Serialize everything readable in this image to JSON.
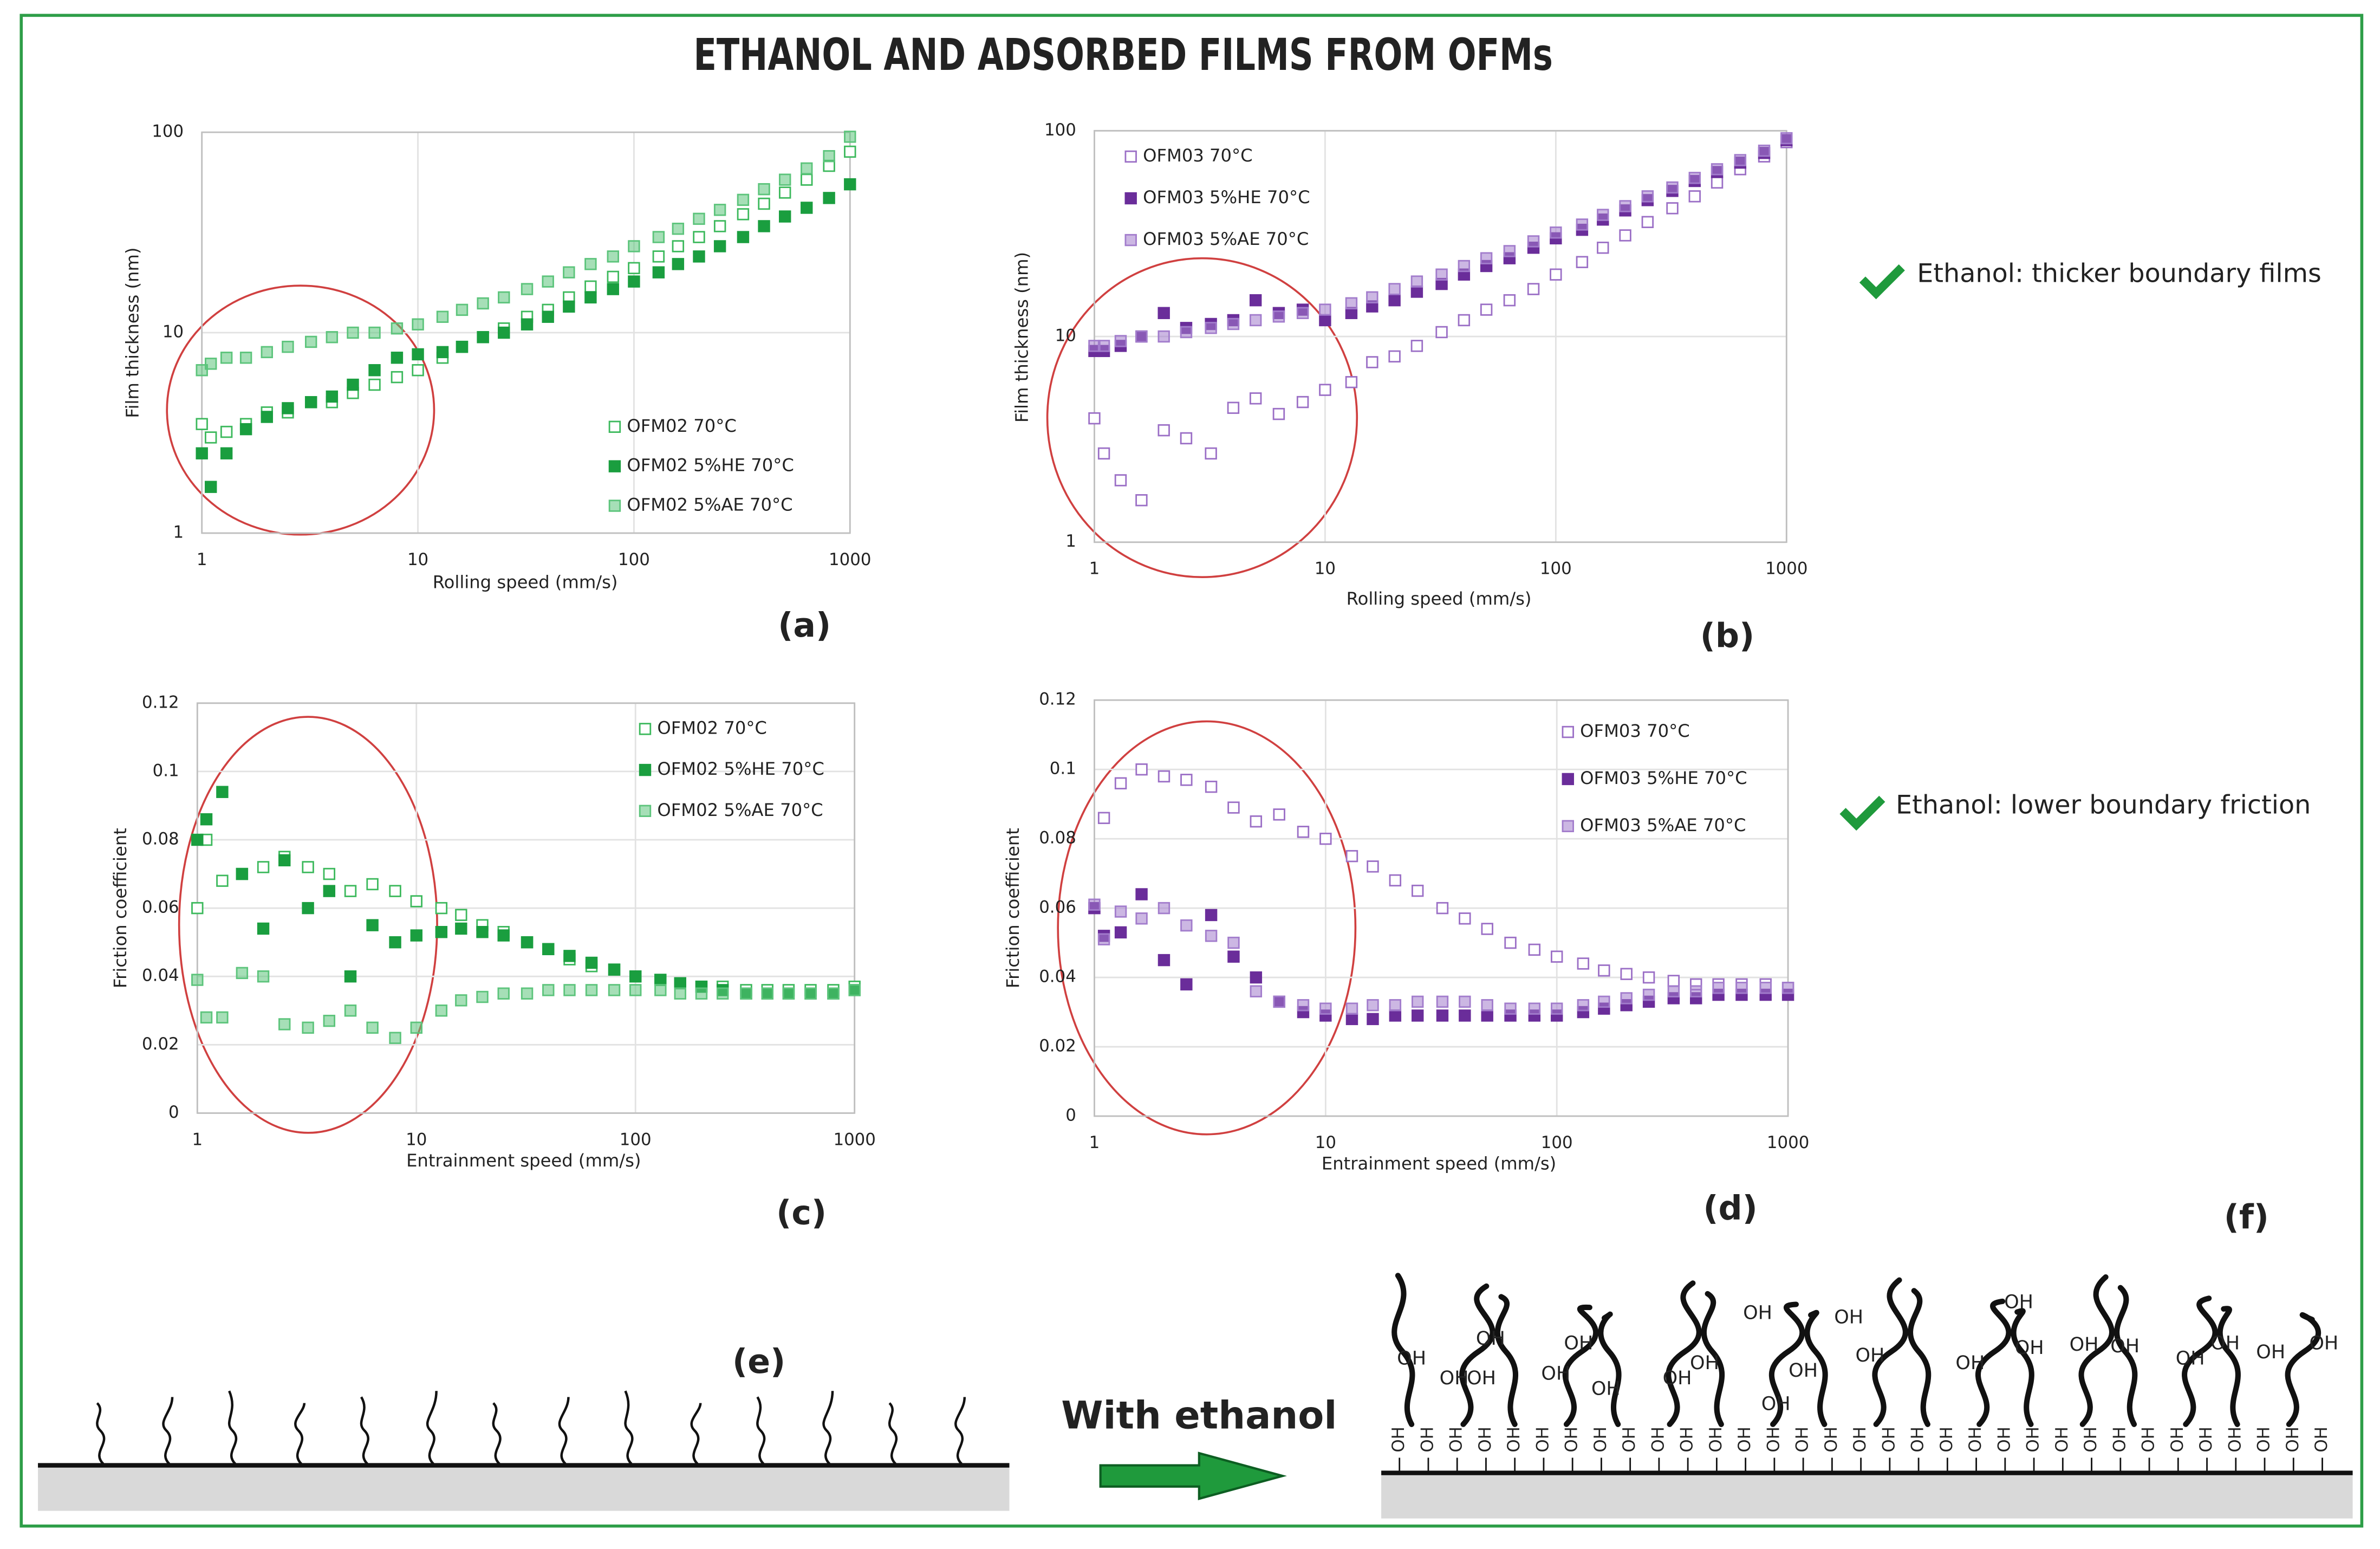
{
  "title": "ETHANOL AND ADSORBED FILMS FROM OFMs",
  "annotations": [
    "Ethanol: thicker boundary films",
    "Ethanol: lower boundary friction"
  ],
  "diagram": {
    "left_label": "(e)",
    "right_label": "(f)",
    "arrow_label": "With ethanol",
    "group_label": "OH"
  },
  "chart_data": [
    {
      "type": "scatter",
      "panel_label": "(a)",
      "xlabel": "Rolling speed (mm/s)",
      "ylabel": "Film thickness (nm)",
      "xlog": true,
      "ylog": true,
      "grid": true,
      "xlim": [
        1,
        1000
      ],
      "xticks": [
        1,
        10,
        100,
        1000
      ],
      "ylim": [
        1,
        100
      ],
      "yticks": [
        1,
        10,
        100
      ],
      "x": [
        1,
        1.1,
        1.3,
        1.6,
        2,
        2.5,
        3.2,
        4,
        5,
        6.3,
        8,
        10,
        13,
        16,
        20,
        25,
        32,
        40,
        50,
        63,
        80,
        100,
        130,
        160,
        200,
        250,
        320,
        400,
        500,
        630,
        800,
        1000
      ],
      "series": [
        {
          "name": "OFM02 70°C",
          "color": "#3cb95c",
          "marker": "open",
          "values": [
            3.5,
            3,
            3.2,
            3.5,
            4,
            4,
            4.5,
            4.5,
            5,
            5.5,
            6,
            6.5,
            7.5,
            8.5,
            9.5,
            10.5,
            12,
            13,
            15,
            17,
            19,
            21,
            24,
            27,
            30,
            34,
            39,
            44,
            50,
            58,
            68,
            80
          ]
        },
        {
          "name": "OFM02 5%HE 70°C",
          "color": "#1a9e3f",
          "marker": "filled",
          "values": [
            2.5,
            1.7,
            2.5,
            3.3,
            3.8,
            4.2,
            4.5,
            4.8,
            5.5,
            6.5,
            7.5,
            7.8,
            8,
            8.5,
            9.5,
            10,
            11,
            12,
            13.5,
            15,
            16.5,
            18,
            20,
            22,
            24,
            27,
            30,
            34,
            38,
            42,
            47,
            55
          ]
        },
        {
          "name": "OFM02 5%AE 70°C",
          "color": "#5cc47b",
          "marker": "hatched",
          "values": [
            6.5,
            7,
            7.5,
            7.5,
            8,
            8.5,
            9,
            9.5,
            10,
            10,
            10.5,
            11,
            12,
            13,
            14,
            15,
            16.5,
            18,
            20,
            22,
            24,
            27,
            30,
            33,
            37,
            41,
            46,
            52,
            58,
            66,
            76,
            95
          ]
        }
      ]
    },
    {
      "type": "scatter",
      "panel_label": "(b)",
      "xlabel": "Rolling speed (mm/s)",
      "ylabel": "Film thickness (nm)",
      "xlog": true,
      "ylog": true,
      "grid": true,
      "xlim": [
        1,
        1000
      ],
      "xticks": [
        1,
        10,
        100,
        1000
      ],
      "ylim": [
        1,
        100
      ],
      "yticks": [
        1,
        10,
        100
      ],
      "x": [
        1,
        1.1,
        1.3,
        1.6,
        2,
        2.5,
        3.2,
        4,
        5,
        6.3,
        8,
        10,
        13,
        16,
        20,
        25,
        32,
        40,
        50,
        63,
        80,
        100,
        130,
        160,
        200,
        250,
        320,
        400,
        500,
        630,
        800,
        1000
      ],
      "series": [
        {
          "name": "OFM03 70°C",
          "color": "#9b6fc6",
          "marker": "open",
          "values": [
            4,
            2.7,
            2,
            1.6,
            3.5,
            3.2,
            2.7,
            4.5,
            5,
            4.2,
            4.8,
            5.5,
            6,
            7.5,
            8,
            9,
            10.5,
            12,
            13.5,
            15,
            17,
            20,
            23,
            27,
            31,
            36,
            42,
            48,
            56,
            65,
            75,
            88
          ]
        },
        {
          "name": "OFM03 5%HE 70°C",
          "color": "#6a2d9a",
          "marker": "filled",
          "values": [
            8.5,
            8.5,
            9,
            10,
            13,
            11,
            11.5,
            12,
            15,
            13,
            13.5,
            12,
            13,
            14,
            15,
            16.5,
            18,
            20,
            22,
            24,
            27,
            30,
            33,
            37,
            41,
            46,
            51,
            57,
            63,
            70,
            78,
            90
          ]
        },
        {
          "name": "OFM03 5%AE 70°C",
          "color": "#a27ccc",
          "marker": "hatched",
          "values": [
            9,
            9,
            9.5,
            10,
            10,
            10.5,
            11,
            11.5,
            12,
            12.5,
            13,
            13.5,
            14.5,
            15.5,
            17,
            18.5,
            20,
            22,
            24,
            26,
            29,
            32,
            35,
            39,
            43,
            48,
            53,
            59,
            65,
            72,
            80,
            92
          ]
        }
      ]
    },
    {
      "type": "scatter",
      "panel_label": "(c)",
      "xlabel": "Entrainment speed (mm/s)",
      "ylabel": "Friction coefficient",
      "xlog": true,
      "ylog": false,
      "grid": true,
      "xlim": [
        1,
        1000
      ],
      "xticks": [
        1,
        10,
        100,
        1000
      ],
      "ylim": [
        0,
        0.12
      ],
      "yticks": [
        0,
        0.02,
        0.04,
        0.06,
        0.08,
        0.1,
        0.12
      ],
      "x": [
        1,
        1.1,
        1.3,
        1.6,
        2,
        2.5,
        3.2,
        4,
        5,
        6.3,
        8,
        10,
        13,
        16,
        20,
        25,
        32,
        40,
        50,
        63,
        80,
        100,
        130,
        160,
        200,
        250,
        320,
        400,
        500,
        630,
        800,
        1000
      ],
      "series": [
        {
          "name": "OFM02 70°C",
          "color": "#3cb95c",
          "marker": "open",
          "values": [
            0.06,
            0.08,
            0.068,
            0.07,
            0.072,
            0.075,
            0.072,
            0.07,
            0.065,
            0.067,
            0.065,
            0.062,
            0.06,
            0.058,
            0.055,
            0.053,
            0.05,
            0.048,
            0.045,
            0.043,
            0.042,
            0.04,
            0.039,
            0.038,
            0.037,
            0.037,
            0.036,
            0.036,
            0.036,
            0.036,
            0.036,
            0.037
          ]
        },
        {
          "name": "OFM02 5%HE 70°C",
          "color": "#1a9e3f",
          "marker": "filled",
          "values": [
            0.08,
            0.086,
            0.094,
            0.07,
            0.054,
            0.074,
            0.06,
            0.065,
            0.04,
            0.055,
            0.05,
            0.052,
            0.053,
            0.054,
            0.053,
            0.052,
            0.05,
            0.048,
            0.046,
            0.044,
            0.042,
            0.04,
            0.039,
            0.038,
            0.037,
            0.036,
            0.035,
            0.035,
            0.035,
            0.035,
            0.035,
            0.036
          ]
        },
        {
          "name": "OFM02 5%AE 70°C",
          "color": "#5cc47b",
          "marker": "hatched",
          "values": [
            0.039,
            0.028,
            0.028,
            0.041,
            0.04,
            0.026,
            0.025,
            0.027,
            0.03,
            0.025,
            0.022,
            0.025,
            0.03,
            0.033,
            0.034,
            0.035,
            0.035,
            0.036,
            0.036,
            0.036,
            0.036,
            0.036,
            0.036,
            0.035,
            0.035,
            0.035,
            0.035,
            0.035,
            0.035,
            0.035,
            0.035,
            0.036
          ]
        }
      ]
    },
    {
      "type": "scatter",
      "panel_label": "(d)",
      "xlabel": "Entrainment speed (mm/s)",
      "ylabel": "Friction coefficient",
      "xlog": true,
      "ylog": false,
      "grid": true,
      "xlim": [
        1,
        1000
      ],
      "xticks": [
        1,
        10,
        100,
        1000
      ],
      "ylim": [
        0,
        0.12
      ],
      "yticks": [
        0,
        0.02,
        0.04,
        0.06,
        0.08,
        0.1,
        0.12
      ],
      "x": [
        1,
        1.1,
        1.3,
        1.6,
        2,
        2.5,
        3.2,
        4,
        5,
        6.3,
        8,
        10,
        13,
        16,
        20,
        25,
        32,
        40,
        50,
        63,
        80,
        100,
        130,
        160,
        200,
        250,
        320,
        400,
        500,
        630,
        800,
        1000
      ],
      "series": [
        {
          "name": "OFM03 70°C",
          "color": "#9b6fc6",
          "marker": "open",
          "values": [
            0.06,
            0.086,
            0.096,
            0.1,
            0.098,
            0.097,
            0.095,
            0.089,
            0.085,
            0.087,
            0.082,
            0.08,
            0.075,
            0.072,
            0.068,
            0.065,
            0.06,
            0.057,
            0.054,
            0.05,
            0.048,
            0.046,
            0.044,
            0.042,
            0.041,
            0.04,
            0.039,
            0.038,
            0.038,
            0.038,
            0.038,
            0.037
          ]
        },
        {
          "name": "OFM03 5%HE 70°C",
          "color": "#6a2d9a",
          "marker": "filled",
          "values": [
            0.06,
            0.052,
            0.053,
            0.064,
            0.045,
            0.038,
            0.058,
            0.046,
            0.04,
            0.033,
            0.03,
            0.029,
            0.028,
            0.028,
            0.029,
            0.029,
            0.029,
            0.029,
            0.029,
            0.029,
            0.029,
            0.029,
            0.03,
            0.031,
            0.032,
            0.033,
            0.034,
            0.034,
            0.035,
            0.035,
            0.035,
            0.035
          ]
        },
        {
          "name": "OFM03 5%AE 70°C",
          "color": "#a27ccc",
          "marker": "hatched",
          "values": [
            0.061,
            0.051,
            0.059,
            0.057,
            0.06,
            0.055,
            0.052,
            0.05,
            0.036,
            0.033,
            0.032,
            0.031,
            0.031,
            0.032,
            0.032,
            0.033,
            0.033,
            0.033,
            0.032,
            0.031,
            0.031,
            0.031,
            0.032,
            0.033,
            0.034,
            0.035,
            0.036,
            0.036,
            0.037,
            0.037,
            0.037,
            0.037
          ]
        }
      ]
    }
  ]
}
